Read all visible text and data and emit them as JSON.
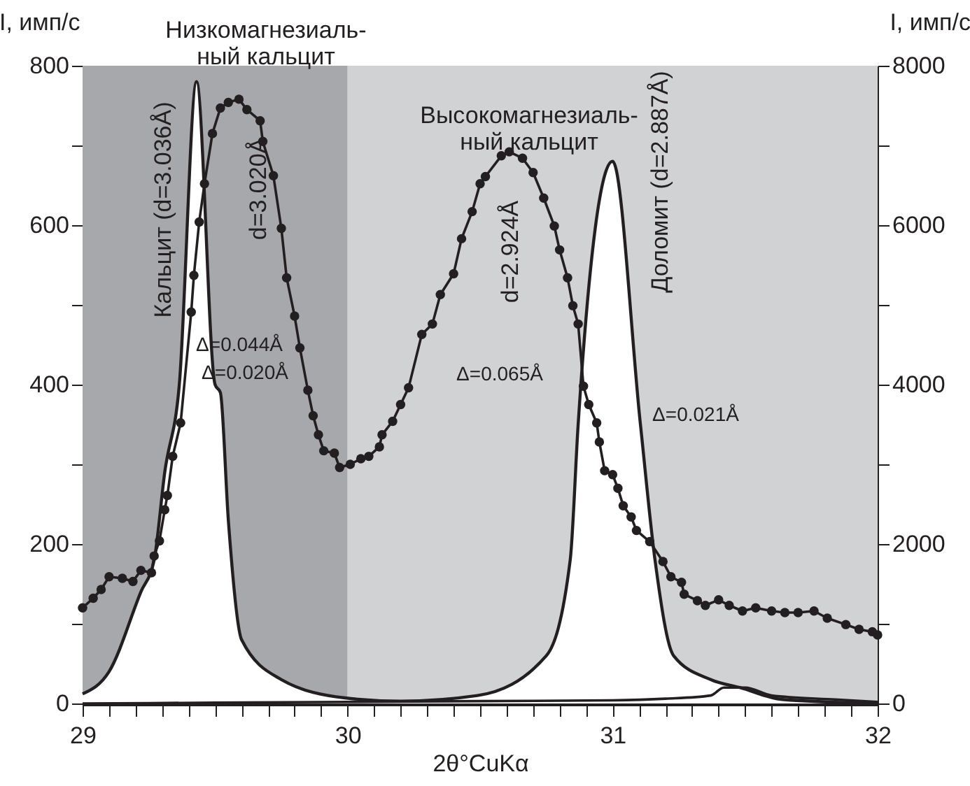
{
  "chart_data": {
    "type": "line",
    "xlabel": "2θ°CuKα",
    "ylabel": "I, имп/с",
    "y2label": "I, имп/с",
    "xlim": [
      29,
      32
    ],
    "ylim": [
      0,
      800
    ],
    "y2lim": [
      0,
      8000
    ],
    "xticks": [
      29,
      {
        "value": 29.1,
        "label": null
      },
      {
        "value": 29.2,
        "label": null
      },
      {
        "value": 29.3,
        "label": null
      },
      {
        "value": 29.4,
        "label": null
      },
      {
        "value": 29.5,
        "label": null
      },
      {
        "value": 29.6,
        "label": null
      },
      {
        "value": 29.7,
        "label": null
      },
      {
        "value": 29.8,
        "label": null
      },
      {
        "value": 29.9,
        "label": null
      },
      30,
      {
        "value": 30.1,
        "label": null
      },
      {
        "value": 30.2,
        "label": null
      },
      {
        "value": 30.3,
        "label": null
      },
      {
        "value": 30.4,
        "label": null
      },
      {
        "value": 30.5,
        "label": null
      },
      {
        "value": 30.6,
        "label": null
      },
      {
        "value": 30.7,
        "label": null
      },
      {
        "value": 30.8,
        "label": null
      },
      {
        "value": 30.9,
        "label": null
      },
      31,
      {
        "value": 31.1,
        "label": null
      },
      {
        "value": 31.2,
        "label": null
      },
      {
        "value": 31.3,
        "label": null
      },
      {
        "value": 31.4,
        "label": null
      },
      {
        "value": 31.5,
        "label": null
      },
      {
        "value": 31.6,
        "label": null
      },
      {
        "value": 31.7,
        "label": null
      },
      {
        "value": 31.8,
        "label": null
      },
      {
        "value": 31.9,
        "label": null
      },
      32
    ],
    "yticks": [
      0,
      {
        "value": 100,
        "label": null
      },
      200,
      {
        "value": 300,
        "label": null
      },
      400,
      {
        "value": 500,
        "label": null
      },
      600,
      {
        "value": 700,
        "label": null
      },
      800
    ],
    "y2ticks": [
      0,
      {
        "value": 1000,
        "label": null
      },
      2000,
      {
        "value": 3000,
        "label": null
      },
      4000,
      {
        "value": 5000,
        "label": null
      },
      6000,
      {
        "value": 7000,
        "label": null
      },
      8000
    ],
    "grid": false,
    "bands": [
      {
        "axis": "x",
        "from": 29,
        "to": 30,
        "color": "#a7a8ab"
      },
      {
        "axis": "x",
        "from": 30,
        "to": 32,
        "color": "#d1d2d4"
      }
    ],
    "series": [
      {
        "type": "area",
        "axis": "y2",
        "color": "#ffffff",
        "x": [
          29.0,
          29.1,
          29.22,
          29.27,
          29.31,
          29.365,
          29.43,
          29.5,
          29.52,
          29.55,
          29.6,
          29.75,
          29.99,
          30.2,
          30.49,
          30.75,
          30.84,
          30.87,
          31.0,
          31.105,
          31.16,
          31.23,
          31.37,
          31.48,
          31.64,
          32.0
        ],
        "values": [
          120,
          400,
          1400,
          1800,
          2900,
          4000,
          7800,
          4000,
          3900,
          2300,
          800,
          300,
          70,
          30,
          100,
          600,
          1800,
          3500,
          6800,
          3500,
          1800,
          600,
          300,
          200,
          50,
          0
        ]
      },
      {
        "type": "line",
        "axis": "y2",
        "color": "#231f20",
        "x": [
          29.0,
          29.5,
          30.0,
          30.5,
          31.0,
          31.2,
          31.37,
          31.42,
          31.5,
          31.6,
          31.84,
          32.0
        ],
        "values": [
          0,
          10,
          20,
          30,
          40,
          60,
          100,
          200,
          200,
          100,
          50,
          20
        ]
      },
      {
        "marker": "circle",
        "color": "#231f20",
        "x": [
          29.0,
          29.04,
          29.07,
          29.1,
          29.15,
          29.19,
          29.22,
          29.26,
          29.27,
          29.29,
          29.31,
          29.32,
          29.34,
          29.37,
          29.41,
          29.42,
          29.44,
          29.46,
          29.49,
          29.52,
          29.55,
          29.59,
          29.62,
          29.67,
          29.68,
          29.72,
          29.75,
          29.77,
          29.8,
          29.82,
          29.85,
          29.87,
          29.89,
          29.91,
          29.95,
          29.97,
          30.01,
          30.05,
          30.08,
          30.12,
          30.13,
          30.17,
          30.2,
          30.23,
          30.28,
          30.32,
          30.35,
          30.4,
          30.43,
          30.47,
          30.5,
          30.52,
          30.58,
          30.61,
          30.66,
          30.7,
          30.74,
          30.78,
          30.8,
          30.83,
          30.85,
          30.87,
          30.89,
          30.91,
          30.94,
          30.95,
          30.97,
          31.0,
          31.02,
          31.04,
          31.07,
          31.09,
          31.14,
          31.19,
          31.22,
          31.26,
          31.27,
          31.32,
          31.35,
          31.4,
          31.44,
          31.49,
          31.54,
          31.6,
          31.65,
          31.7,
          31.76,
          31.81,
          31.88,
          31.93,
          31.98,
          32.0
        ],
        "values": [
          120,
          132,
          143,
          159,
          157,
          153,
          167,
          164,
          185,
          204,
          243,
          261,
          310,
          352,
          491,
          537,
          604,
          652,
          715,
          747,
          754,
          758,
          745,
          731,
          705,
          662,
          596,
          534,
          486,
          446,
          393,
          361,
          337,
          317,
          314,
          296,
          300,
          307,
          310,
          322,
          337,
          354,
          375,
          396,
          463,
          476,
          513,
          539,
          583,
          617,
          652,
          661,
          687,
          692,
          684,
          666,
          634,
          599,
          569,
          534,
          499,
          476,
          398,
          375,
          352,
          328,
          292,
          287,
          270,
          248,
          234,
          217,
          203,
          178,
          159,
          152,
          137,
          129,
          123,
          130,
          123,
          116,
          120,
          116,
          114,
          114,
          116,
          107,
          99,
          93,
          90,
          86
        ]
      }
    ],
    "annotations": [
      "Низкомагнезиаль-\nный кальцит",
      "Высокомагнезиаль-\nный кальцит",
      "Кальцит (d=3.036Å)",
      "d=3.020Å",
      "d=2.924Å",
      "Доломит (d=2.887Å)",
      "Δ=0.044Å",
      "Δ=0.020Å",
      "Δ=0.065Å",
      "Δ=0.021Å"
    ]
  }
}
